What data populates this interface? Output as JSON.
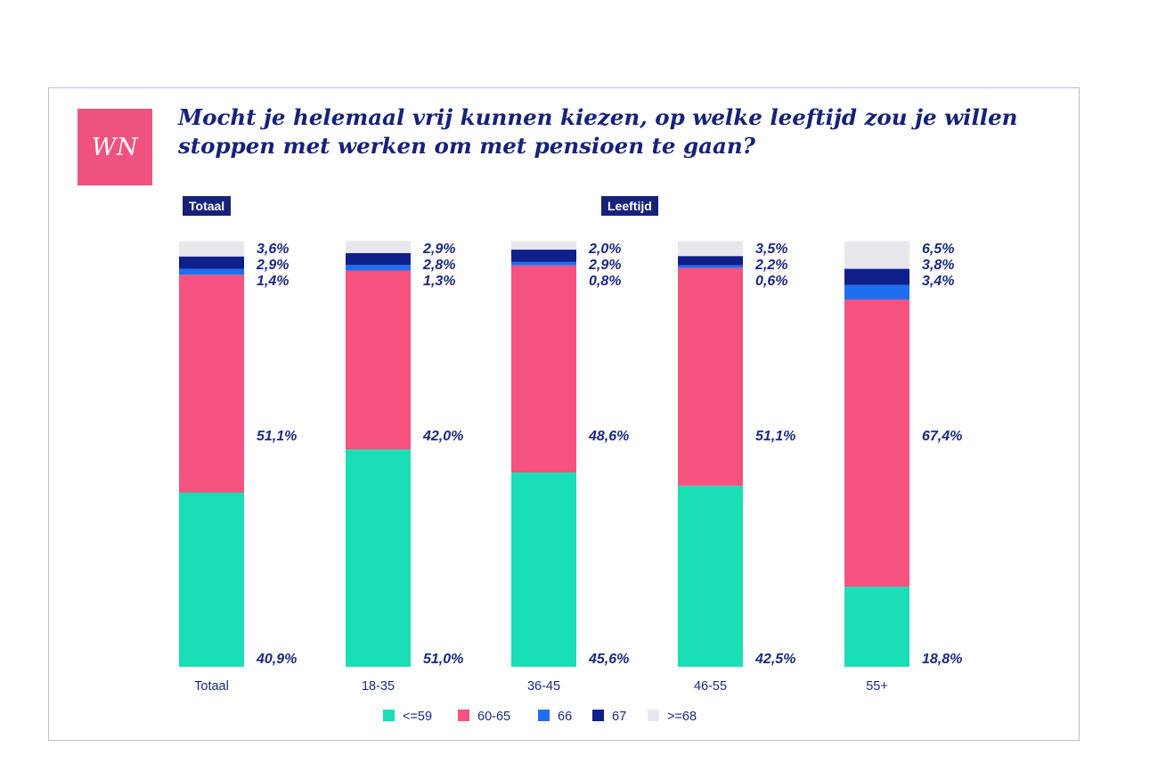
{
  "logo": {
    "text": "WN"
  },
  "title": {
    "line1": "Mocht je helemaal vrij kunnen kiezen, op welke leeftijd zou je willen",
    "line2": "stoppen met werken om met pensioen te gaan?"
  },
  "group_tags": {
    "totaal": "Totaal",
    "leeftijd": "Leeftijd"
  },
  "chart_data": {
    "type": "bar",
    "stacked": true,
    "title": "Mocht je helemaal vrij kunnen kiezen, op welke leeftijd zou je willen stoppen met werken om met pensioen te gaan?",
    "categories": [
      "Totaal",
      "18-35",
      "36-45",
      "46-55",
      "55+"
    ],
    "series": [
      {
        "name": "<=59",
        "color": "#1adfb6",
        "values": [
          40.9,
          51.0,
          45.6,
          42.5,
          18.8
        ],
        "labels": [
          "40,9%",
          "51,0%",
          "45,6%",
          "42,5%",
          "18,8%"
        ]
      },
      {
        "name": "60-65",
        "color": "#f5527f",
        "values": [
          51.1,
          42.0,
          48.6,
          51.1,
          67.4
        ],
        "labels": [
          "51,1%",
          "42,0%",
          "48,6%",
          "51,1%",
          "67,4%"
        ]
      },
      {
        "name": "66",
        "color": "#1e6ff0",
        "values": [
          1.4,
          1.3,
          0.8,
          0.6,
          3.4
        ],
        "labels": [
          "1,4%",
          "1,3%",
          "0,8%",
          "0,6%",
          "3,4%"
        ]
      },
      {
        "name": "67",
        "color": "#0f1f8c",
        "values": [
          2.9,
          2.8,
          2.9,
          2.2,
          3.8
        ],
        "labels": [
          "2,9%",
          "2,8%",
          "2,9%",
          "2,2%",
          "3,8%"
        ]
      },
      {
        "name": ">=68",
        "color": "#e8e8ec",
        "values": [
          3.6,
          2.9,
          2.0,
          3.5,
          6.5
        ],
        "labels": [
          "3,6%",
          "2,9%",
          "2,0%",
          "3,5%",
          "6,5%"
        ]
      }
    ],
    "ylim": [
      0,
      100
    ],
    "xlabel": "",
    "ylabel": "",
    "legend_position": "bottom"
  }
}
